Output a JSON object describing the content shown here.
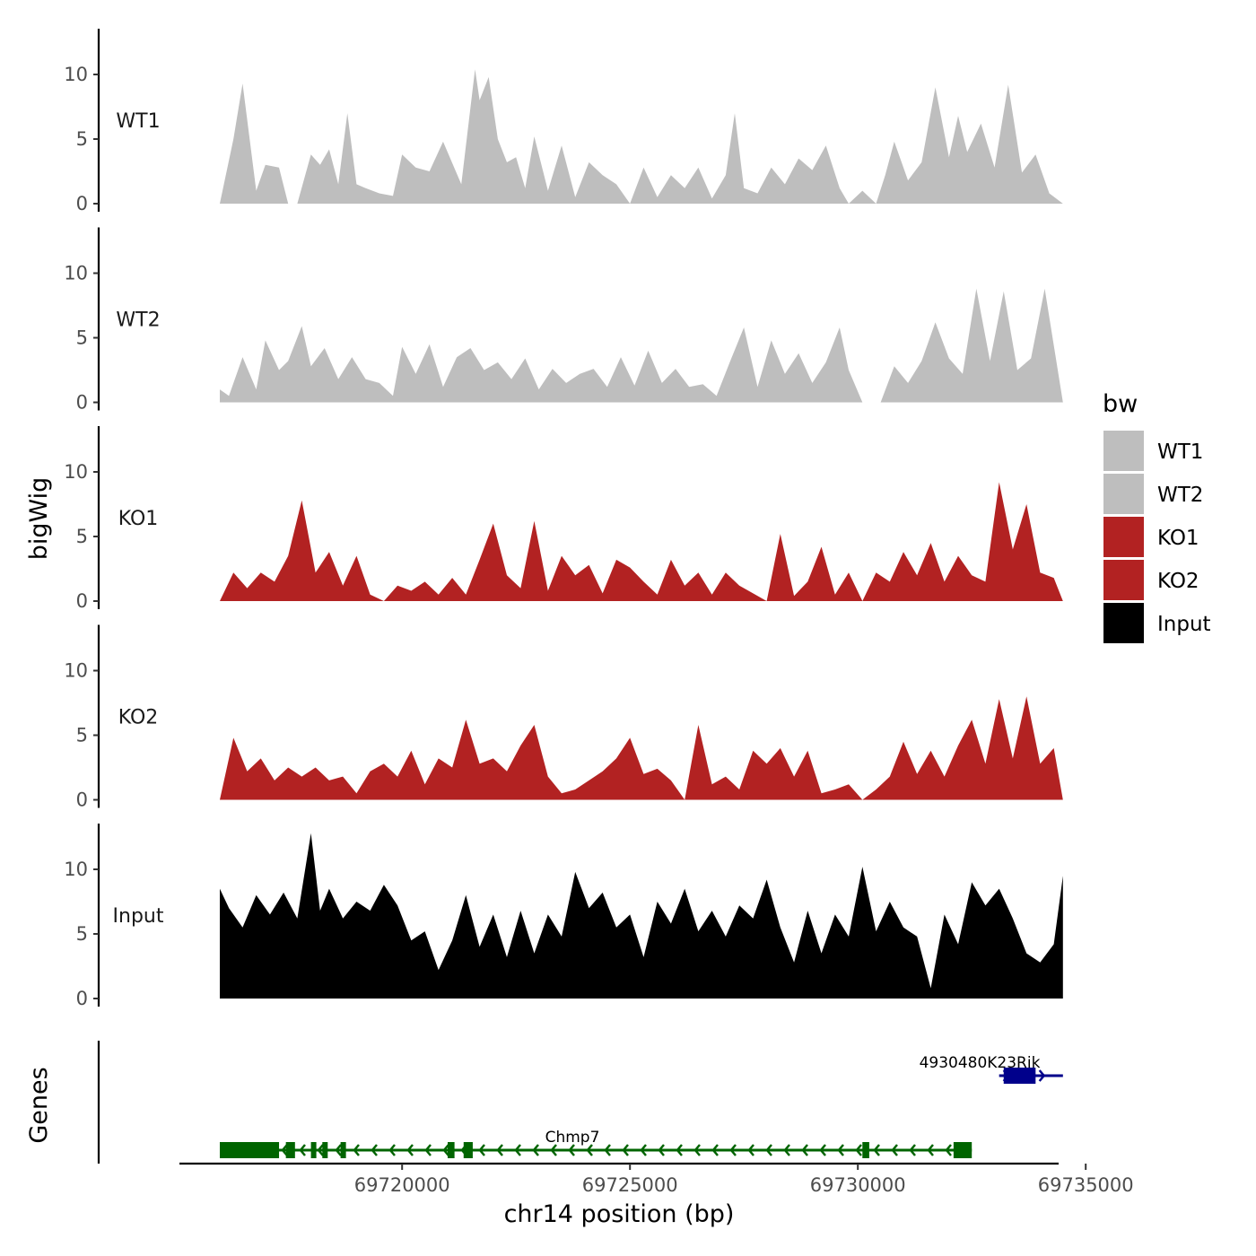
{
  "chart_data": {
    "type": "area",
    "ylabel": "bigWig",
    "gene_panel_label": "Genes",
    "xlabel": "chr14 position (bp)",
    "x_range": [
      69715000,
      69735500
    ],
    "x_ticks": [
      69720000,
      69725000,
      69730000,
      69735000
    ],
    "x_tick_labels": [
      "69720000",
      "69725000",
      "69730000",
      "69735000"
    ],
    "y_range": [
      0,
      13.5
    ],
    "y_ticks": [
      0,
      5,
      10
    ],
    "y_tick_labels": [
      "0",
      "5",
      "10"
    ],
    "legend_title": "bw",
    "tracks": [
      {
        "name": "WT1",
        "color": "#bebebe",
        "x": [
          69716000,
          69716300,
          69716500,
          69716800,
          69717000,
          69717300,
          69717500,
          69717700,
          69718000,
          69718200,
          69718400,
          69718600,
          69718800,
          69719000,
          69719200,
          69719500,
          69719800,
          69720000,
          69720300,
          69720600,
          69720900,
          69721300,
          69721600,
          69721700,
          69721900,
          69722100,
          69722300,
          69722500,
          69722700,
          69722900,
          69723200,
          69723500,
          69723800,
          69724100,
          69724400,
          69724700,
          69725000,
          69725300,
          69725600,
          69725900,
          69726200,
          69726500,
          69726800,
          69727100,
          69727300,
          69727500,
          69727800,
          69728100,
          69728400,
          69728700,
          69729000,
          69729300,
          69729600,
          69729800,
          69730100,
          69730400,
          69730600,
          69730800,
          69731100,
          69731400,
          69731700,
          69732000,
          69732200,
          69732400,
          69732700,
          69733000,
          69733300,
          69733600,
          69733900,
          69734200,
          69734500
        ],
        "values": [
          0,
          5,
          9.3,
          1,
          3,
          2.8,
          0,
          0,
          3.8,
          3,
          4.2,
          1.5,
          7,
          1.5,
          1.2,
          0.8,
          0.6,
          3.8,
          2.8,
          2.5,
          4.8,
          1.5,
          10.4,
          8,
          9.8,
          5,
          3.2,
          3.6,
          1.2,
          5.2,
          1,
          4.5,
          0.5,
          3.2,
          2.2,
          1.5,
          0,
          2.8,
          0.5,
          2.2,
          1.2,
          2.8,
          0.4,
          2.2,
          7,
          1.2,
          0.8,
          2.8,
          1.5,
          3.5,
          2.6,
          4.5,
          1.2,
          0,
          1,
          0,
          2.2,
          4.8,
          1.8,
          3.2,
          9,
          3.6,
          6.8,
          4,
          6.2,
          2.8,
          9.2,
          2.4,
          3.8,
          0.8,
          0
        ]
      },
      {
        "name": "WT2",
        "color": "#bebebe",
        "x": [
          69716000,
          69716200,
          69716500,
          69716800,
          69717000,
          69717300,
          69717500,
          69717800,
          69718000,
          69718300,
          69718600,
          69718900,
          69719200,
          69719500,
          69719800,
          69720000,
          69720300,
          69720600,
          69720900,
          69721200,
          69721500,
          69721800,
          69722100,
          69722400,
          69722700,
          69723000,
          69723300,
          69723600,
          69723900,
          69724200,
          69724500,
          69724800,
          69725100,
          69725400,
          69725700,
          69726000,
          69726300,
          69726600,
          69726900,
          69727200,
          69727500,
          69727800,
          69728100,
          69728400,
          69728700,
          69729000,
          69729300,
          69729600,
          69729800,
          69730100,
          69730500,
          69730800,
          69731100,
          69731400,
          69731700,
          69732000,
          69732300,
          69732600,
          69732900,
          69733200,
          69733500,
          69733800,
          69734100,
          69734500
        ],
        "values": [
          1,
          0.5,
          3.5,
          1,
          4.8,
          2.5,
          3.2,
          5.9,
          2.8,
          4.2,
          1.8,
          3.5,
          1.8,
          1.5,
          0.5,
          4.3,
          2.2,
          4.5,
          1.2,
          3.5,
          4.2,
          2.5,
          3.1,
          1.8,
          3.4,
          1,
          2.6,
          1.5,
          2.2,
          2.6,
          1.2,
          3.5,
          1.3,
          4,
          1.5,
          2.6,
          1.2,
          1.4,
          0.5,
          3.2,
          5.8,
          1.2,
          4.8,
          2.2,
          3.8,
          1.5,
          3.1,
          5.8,
          2.5,
          0,
          0,
          2.8,
          1.5,
          3.2,
          6.2,
          3.4,
          2.2,
          8.8,
          3.2,
          8.6,
          2.5,
          3.4,
          8.8,
          0
        ]
      },
      {
        "name": "KO1",
        "color": "#b22222",
        "x": [
          69716000,
          69716300,
          69716600,
          69716900,
          69717200,
          69717500,
          69717800,
          69718100,
          69718400,
          69718700,
          69719000,
          69719300,
          69719600,
          69719900,
          69720200,
          69720500,
          69720800,
          69721100,
          69721400,
          69721700,
          69722000,
          69722300,
          69722600,
          69722900,
          69723200,
          69723500,
          69723800,
          69724100,
          69724400,
          69724700,
          69725000,
          69725300,
          69725600,
          69725900,
          69726200,
          69726500,
          69726800,
          69727100,
          69727400,
          69727700,
          69728000,
          69728300,
          69728600,
          69728900,
          69729200,
          69729500,
          69729800,
          69730100,
          69730400,
          69730700,
          69731000,
          69731300,
          69731600,
          69731900,
          69732200,
          69732500,
          69732800,
          69733100,
          69733400,
          69733700,
          69734000,
          69734300,
          69734500
        ],
        "values": [
          0,
          2.2,
          1,
          2.2,
          1.5,
          3.5,
          7.8,
          2.2,
          3.8,
          1.2,
          3.5,
          0.5,
          0,
          1.2,
          0.8,
          1.5,
          0.5,
          1.8,
          0.5,
          3.2,
          6,
          2,
          1,
          6.2,
          0.8,
          3.5,
          2,
          2.8,
          0.6,
          3.2,
          2.6,
          1.5,
          0.5,
          3.2,
          1.2,
          2.2,
          0.5,
          2.2,
          1.2,
          0.6,
          0,
          5.2,
          0.4,
          1.5,
          4.2,
          0.5,
          2.2,
          0,
          2.2,
          1.5,
          3.8,
          2,
          4.5,
          1.5,
          3.5,
          2,
          1.5,
          9.2,
          4,
          7.5,
          2.2,
          1.8,
          0
        ]
      },
      {
        "name": "KO2",
        "color": "#b22222",
        "x": [
          69716000,
          69716300,
          69716600,
          69716900,
          69717200,
          69717500,
          69717800,
          69718100,
          69718400,
          69718700,
          69719000,
          69719300,
          69719600,
          69719900,
          69720200,
          69720500,
          69720800,
          69721100,
          69721400,
          69721700,
          69722000,
          69722300,
          69722600,
          69722900,
          69723200,
          69723500,
          69723800,
          69724100,
          69724400,
          69724700,
          69725000,
          69725300,
          69725600,
          69725900,
          69726200,
          69726500,
          69726800,
          69727100,
          69727400,
          69727700,
          69728000,
          69728300,
          69728600,
          69728900,
          69729200,
          69729500,
          69729800,
          69730100,
          69730400,
          69730700,
          69731000,
          69731300,
          69731600,
          69731900,
          69732200,
          69732500,
          69732800,
          69733100,
          69733400,
          69733700,
          69734000,
          69734300,
          69734500
        ],
        "values": [
          0,
          4.8,
          2.2,
          3.2,
          1.5,
          2.5,
          1.8,
          2.5,
          1.5,
          1.8,
          0.5,
          2.2,
          2.8,
          1.8,
          3.8,
          1.2,
          3.2,
          2.5,
          6.2,
          2.8,
          3.2,
          2.2,
          4.2,
          5.8,
          1.8,
          0.5,
          0.8,
          1.5,
          2.2,
          3.2,
          4.8,
          2,
          2.4,
          1.5,
          0,
          5.8,
          1.2,
          1.8,
          0.8,
          3.8,
          2.8,
          4,
          1.8,
          3.8,
          0.5,
          0.8,
          1.2,
          0,
          0.8,
          1.8,
          4.5,
          2,
          3.8,
          1.8,
          4.2,
          6.2,
          2.8,
          7.8,
          3.2,
          8,
          2.8,
          4,
          0
        ]
      },
      {
        "name": "Input",
        "color": "#000000",
        "x": [
          69716000,
          69716200,
          69716500,
          69716800,
          69717100,
          69717400,
          69717700,
          69718000,
          69718200,
          69718400,
          69718700,
          69719000,
          69719300,
          69719600,
          69719900,
          69720200,
          69720500,
          69720800,
          69721100,
          69721400,
          69721700,
          69722000,
          69722300,
          69722600,
          69722900,
          69723200,
          69723500,
          69723800,
          69724100,
          69724400,
          69724700,
          69725000,
          69725300,
          69725600,
          69725900,
          69726200,
          69726500,
          69726800,
          69727100,
          69727400,
          69727700,
          69728000,
          69728300,
          69728600,
          69728900,
          69729200,
          69729500,
          69729800,
          69730100,
          69730400,
          69730700,
          69731000,
          69731300,
          69731600,
          69731900,
          69732200,
          69732500,
          69732800,
          69733100,
          69733400,
          69733700,
          69734000,
          69734300,
          69734500
        ],
        "values": [
          8.5,
          7,
          5.5,
          8,
          6.5,
          8.2,
          6.2,
          12.8,
          6.8,
          8.5,
          6.2,
          7.5,
          6.8,
          8.8,
          7.2,
          4.5,
          5.2,
          2.2,
          4.5,
          8,
          4,
          6.5,
          3.2,
          6.8,
          3.5,
          6.5,
          4.8,
          9.8,
          7,
          8.2,
          5.5,
          6.5,
          3.2,
          7.5,
          5.8,
          8.5,
          5.2,
          6.8,
          4.8,
          7.2,
          6.2,
          9.2,
          5.5,
          2.8,
          6.8,
          3.5,
          6.5,
          4.8,
          10.2,
          5.2,
          7.5,
          5.5,
          4.8,
          0.8,
          6.5,
          4.2,
          9,
          7.2,
          8.5,
          6.2,
          3.5,
          2.8,
          4.2,
          9.5
        ]
      }
    ],
    "genes": [
      {
        "name": "4930480K23Rik",
        "color": "#00008b",
        "strand": "+",
        "start": 69733100,
        "end": 69734500,
        "exons": [
          [
            69733200,
            69733900
          ]
        ]
      },
      {
        "name": "Chmp7",
        "color": "#006400",
        "strand": "-",
        "start": 69716000,
        "end": 69732500,
        "exons": [
          [
            69716000,
            69717300
          ],
          [
            69717450,
            69717650
          ],
          [
            69718000,
            69718100
          ],
          [
            69718250,
            69718350
          ],
          [
            69718650,
            69718750
          ],
          [
            69721000,
            69721150
          ],
          [
            69721350,
            69721550
          ],
          [
            69730100,
            69730250
          ],
          [
            69732100,
            69732500
          ]
        ]
      }
    ]
  }
}
